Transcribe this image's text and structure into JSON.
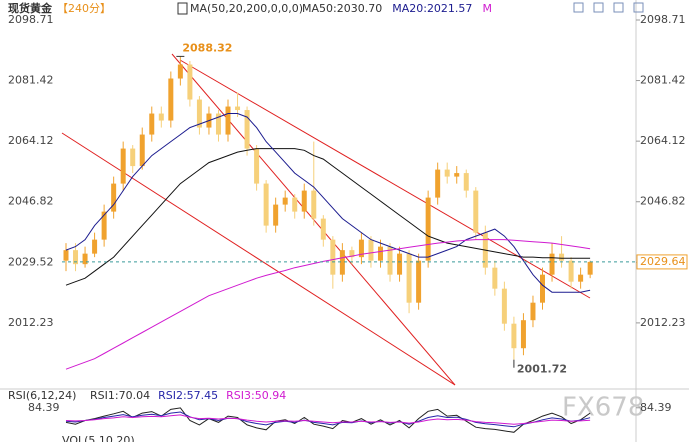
{
  "chart_data": {
    "type": "candlestick",
    "title": "现货黄金",
    "period": "【240分】",
    "indicator": "MA(50,20,200,0,0,0)",
    "up_color": "#f0a22e",
    "down_color": "#f6d07a",
    "open": [
      2030,
      2033,
      2029,
      2032,
      2036,
      2044,
      2052,
      2062,
      2057,
      2066,
      2072,
      2070,
      2082,
      2086,
      2076,
      2068,
      2072,
      2066,
      2074,
      2073,
      2062,
      2052,
      2040,
      2046,
      2048,
      2044,
      2050,
      2042,
      2036,
      2026,
      2033,
      2031,
      2036,
      2030,
      2034,
      2026,
      2032,
      2018,
      2030,
      2048,
      2056,
      2054,
      2055,
      2050,
      2038,
      2028,
      2022,
      2012,
      2005,
      2013,
      2018,
      2026,
      2032,
      2030,
      2024,
      2026
    ],
    "high": [
      2035,
      2035,
      2034,
      2038,
      2046,
      2054,
      2064,
      2063,
      2068,
      2074,
      2074,
      2084,
      2088.32,
      2087,
      2077,
      2074,
      2073,
      2076,
      2078,
      2074,
      2063,
      2053,
      2048,
      2050,
      2049,
      2052,
      2064,
      2043,
      2037,
      2035,
      2034,
      2038,
      2037,
      2036,
      2035,
      2034,
      2033,
      2032,
      2050,
      2058,
      2058,
      2057,
      2056,
      2051,
      2040,
      2030,
      2024,
      2014,
      2015,
      2020,
      2028,
      2035,
      2037,
      2031,
      2028,
      2030
    ],
    "low": [
      2027,
      2027,
      2028,
      2031,
      2034,
      2042,
      2050,
      2055,
      2056,
      2064,
      2068,
      2068,
      2080,
      2074,
      2066,
      2066,
      2064,
      2064,
      2071,
      2060,
      2050,
      2038,
      2038,
      2044,
      2042,
      2042,
      2040,
      2034,
      2022,
      2024,
      2029,
      2029,
      2028,
      2028,
      2024,
      2024,
      2015,
      2016,
      2028,
      2046,
      2052,
      2052,
      2048,
      2036,
      2026,
      2020,
      2010,
      2001.72,
      2003,
      2011,
      2016,
      2024,
      2028,
      2022,
      2022,
      2025
    ],
    "close": [
      2033,
      2029,
      2032,
      2036,
      2044,
      2052,
      2062,
      2057,
      2066,
      2072,
      2070,
      2082,
      2086,
      2076,
      2068,
      2072,
      2066,
      2074,
      2073,
      2062,
      2052,
      2040,
      2046,
      2048,
      2044,
      2050,
      2042,
      2036,
      2026,
      2033,
      2031,
      2036,
      2030,
      2034,
      2026,
      2032,
      2018,
      2030,
      2048,
      2056,
      2054,
      2055,
      2050,
      2038,
      2028,
      2022,
      2012,
      2005,
      2013,
      2018,
      2026,
      2032,
      2030,
      2024,
      2026,
      2029.64
    ],
    "series": [
      {
        "name": "MA50:2030.70",
        "color": "#111111",
        "values": [
          2023,
          2024,
          2025,
          2027,
          2029,
          2031,
          2034,
          2037,
          2040,
          2043,
          2046,
          2049,
          2052,
          2054,
          2056,
          2058,
          2059,
          2060,
          2061,
          2061.5,
          2062,
          2062,
          2062,
          2062,
          2062,
          2061.5,
          2060,
          2059,
          2057,
          2055,
          2053,
          2051,
          2049,
          2047,
          2045,
          2043,
          2041,
          2039,
          2037,
          2036,
          2035,
          2034.5,
          2034,
          2033.5,
          2033,
          2032.5,
          2032,
          2031.5,
          2031,
          2031,
          2030.8,
          2030.8,
          2030.7,
          2030.7,
          2030.7,
          2030.7
        ]
      },
      {
        "name": "MA20:2021.57",
        "color": "#1c1c8f",
        "values": [
          2033,
          2034,
          2036,
          2040,
          2043,
          2046,
          2050,
          2054,
          2057,
          2060,
          2062,
          2064,
          2066,
          2068,
          2069,
          2070,
          2071,
          2072,
          2072,
          2071,
          2068,
          2064,
          2061,
          2058,
          2055,
          2053,
          2051,
          2048,
          2045,
          2042,
          2040,
          2038,
          2036,
          2035,
          2034,
          2033,
          2032,
          2031,
          2031,
          2032,
          2033,
          2034,
          2036,
          2037,
          2038,
          2039,
          2037,
          2034,
          2030,
          2026,
          2023,
          2021,
          2021,
          2021,
          2021,
          2021.57
        ]
      },
      {
        "name": "M",
        "color": "#d01ad0",
        "values": [
          1999,
          2000,
          2001,
          2002,
          2003.5,
          2005,
          2006.5,
          2008,
          2009.5,
          2011,
          2012.5,
          2014,
          2015.5,
          2017,
          2018.5,
          2020,
          2021,
          2022,
          2023,
          2024,
          2025,
          2025.8,
          2026.5,
          2027.2,
          2028,
          2028.6,
          2029.2,
          2029.8,
          2030.3,
          2030.8,
          2031.3,
          2031.8,
          2032.2,
          2032.6,
          2033,
          2033.4,
          2033.8,
          2034.2,
          2034.6,
          2035,
          2035.3,
          2035.6,
          2035.8,
          2036,
          2036,
          2036,
          2036,
          2035.8,
          2035.6,
          2035.4,
          2035.2,
          2035,
          2034.6,
          2034.2,
          2033.8,
          2033.4
        ]
      }
    ],
    "ylim": [
      1993.64,
      2104.42
    ],
    "yticks": [
      2012.23,
      2029.52,
      2046.82,
      2064.12,
      2081.42,
      2098.71
    ],
    "rsi": {
      "title": "RSI(6,12,24)",
      "ylim": [
        0,
        100
      ],
      "yticks": [
        84.39
      ],
      "series": [
        {
          "name": "RSI1:70.04",
          "color": "#222222",
          "values": [
            45,
            40,
            50,
            55,
            62,
            68,
            75,
            58,
            70,
            74,
            62,
            80,
            84,
            50,
            38,
            55,
            45,
            62,
            58,
            38,
            30,
            25,
            48,
            52,
            42,
            58,
            40,
            35,
            28,
            50,
            45,
            55,
            40,
            52,
            38,
            50,
            30,
            55,
            75,
            80,
            62,
            64,
            48,
            32,
            28,
            26,
            22,
            18,
            40,
            50,
            62,
            70,
            60,
            42,
            52,
            70.04
          ]
        },
        {
          "name": "RSI2:57.45",
          "color": "#2626a8",
          "values": [
            48,
            46,
            50,
            53,
            58,
            62,
            66,
            60,
            64,
            67,
            63,
            70,
            73,
            60,
            52,
            55,
            50,
            56,
            55,
            47,
            42,
            38,
            45,
            48,
            45,
            51,
            45,
            42,
            38,
            45,
            44,
            49,
            44,
            48,
            43,
            47,
            40,
            48,
            58,
            63,
            58,
            59,
            53,
            45,
            41,
            39,
            36,
            33,
            40,
            45,
            52,
            57,
            54,
            48,
            51,
            57.45
          ]
        },
        {
          "name": "RSI3:50.94",
          "color": "#d01ad0",
          "values": [
            50,
            49,
            50,
            52,
            55,
            57,
            60,
            58,
            60,
            61,
            60,
            63,
            65,
            59,
            55,
            56,
            54,
            56,
            55,
            51,
            48,
            46,
            48,
            49,
            48,
            50,
            48,
            46,
            44,
            46,
            46,
            48,
            46,
            47,
            45,
            46,
            43,
            46,
            51,
            54,
            52,
            53,
            51,
            47,
            45,
            44,
            42,
            40,
            42,
            45,
            48,
            51,
            50,
            48,
            49,
            50.94
          ]
        }
      ]
    },
    "volume_title": "VOL(5,10,20)",
    "watermark": "FX678"
  }
}
